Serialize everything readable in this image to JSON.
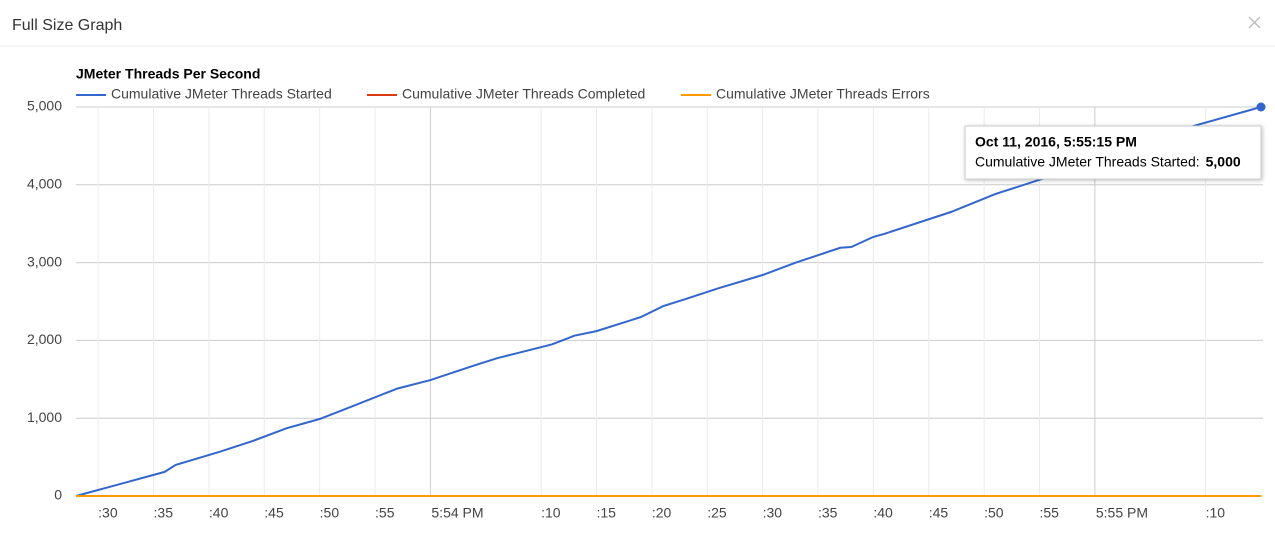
{
  "dialog": {
    "title": "Full Size Graph"
  },
  "chart_data": {
    "type": "line",
    "title": "JMeter Threads Per Second",
    "x": [
      "17:53:28",
      "17:53:36",
      "17:53:37",
      "17:53:41",
      "17:53:44",
      "17:53:47",
      "17:53:50",
      "17:53:52",
      "17:53:57",
      "17:54:00",
      "17:54:04",
      "17:54:06",
      "17:54:11",
      "17:54:13",
      "17:54:15",
      "17:54:19",
      "17:54:21",
      "17:54:23",
      "17:54:26",
      "17:54:30",
      "17:54:33",
      "17:54:37",
      "17:54:38",
      "17:54:40",
      "17:54:41",
      "17:54:47",
      "17:54:51",
      "17:54:56",
      "17:55:00",
      "17:55:05",
      "17:55:09",
      "17:55:15"
    ],
    "series": [
      {
        "name": "Cumulative JMeter Threads Started",
        "color": "#3366cc",
        "values": [
          0,
          310,
          400,
          570,
          710,
          870,
          990,
          1100,
          1380,
          1490,
          1680,
          1770,
          1950,
          2060,
          2120,
          2300,
          2440,
          2530,
          2670,
          2840,
          3000,
          3190,
          3200,
          3330,
          3370,
          3650,
          3880,
          4110,
          4340,
          4580,
          4760,
          5000
        ]
      },
      {
        "name": "Cumulative JMeter Threads Completed",
        "color": "#dc3912",
        "values": [
          0,
          0,
          0,
          0,
          0,
          0,
          0,
          0,
          0,
          0,
          0,
          0,
          0,
          0,
          0,
          0,
          0,
          0,
          0,
          0,
          0,
          0,
          0,
          0,
          0,
          0,
          0,
          0,
          0,
          0,
          0,
          0
        ]
      },
      {
        "name": "Cumulative JMeter Threads Errors",
        "color": "#ff9900",
        "values": [
          0,
          0,
          0,
          0,
          0,
          0,
          0,
          0,
          0,
          0,
          0,
          0,
          0,
          0,
          0,
          0,
          0,
          0,
          0,
          0,
          0,
          0,
          0,
          0,
          0,
          0,
          0,
          0,
          0,
          0,
          0,
          0
        ]
      }
    ],
    "xlim": [
      "17:53:28",
      "17:55:15"
    ],
    "xticks": [
      {
        "value": "17:53:30",
        "label": ":30"
      },
      {
        "value": "17:53:35",
        "label": ":35"
      },
      {
        "value": "17:53:40",
        "label": ":40"
      },
      {
        "value": "17:53:45",
        "label": ":45"
      },
      {
        "value": "17:53:50",
        "label": ":50"
      },
      {
        "value": "17:53:55",
        "label": ":55"
      },
      {
        "value": "17:54:00",
        "label": "5:54 PM"
      },
      {
        "value": "17:54:10",
        "label": ":10"
      },
      {
        "value": "17:54:15",
        "label": ":15"
      },
      {
        "value": "17:54:20",
        "label": ":20"
      },
      {
        "value": "17:54:25",
        "label": ":25"
      },
      {
        "value": "17:54:30",
        "label": ":30"
      },
      {
        "value": "17:54:35",
        "label": ":35"
      },
      {
        "value": "17:54:40",
        "label": ":40"
      },
      {
        "value": "17:54:45",
        "label": ":45"
      },
      {
        "value": "17:54:50",
        "label": ":50"
      },
      {
        "value": "17:54:55",
        "label": ":55"
      },
      {
        "value": "17:55:00",
        "label": "5:55 PM"
      },
      {
        "value": "17:55:10",
        "label": ":10"
      }
    ],
    "ylim": [
      0,
      5000
    ],
    "yticks": [
      0,
      {
        "value": 1000,
        "label": "1,000"
      },
      {
        "value": 2000,
        "label": "2,000"
      },
      {
        "value": 3000,
        "label": "3,000"
      },
      {
        "value": 4000,
        "label": "4,000"
      },
      {
        "value": 5000,
        "label": "5,000"
      }
    ],
    "grid": true,
    "legend": "top",
    "tooltip": {
      "title": "Oct 11, 2016, 5:55:15 PM",
      "label": "Cumulative JMeter Threads Started:",
      "value": "5,000"
    }
  }
}
